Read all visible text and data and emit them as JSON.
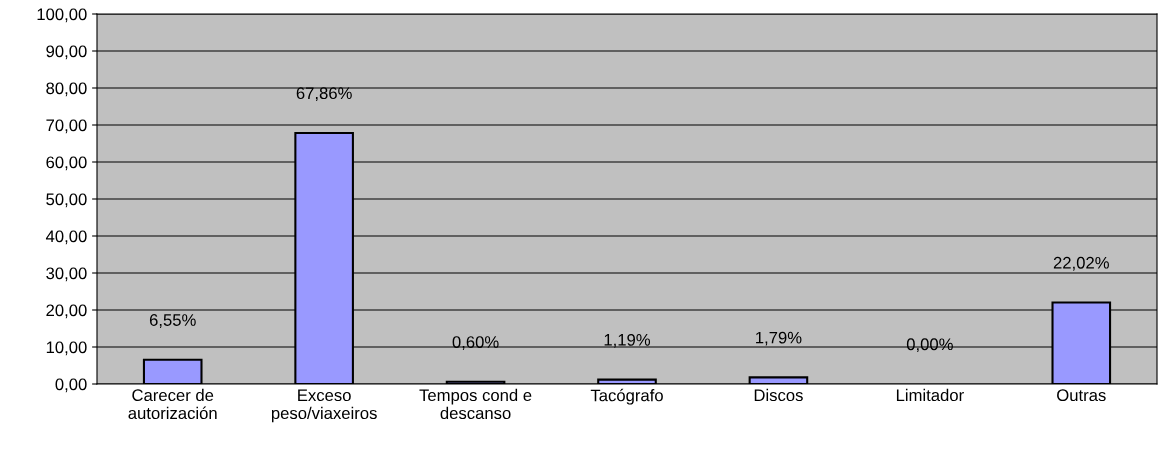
{
  "chart_data": {
    "type": "bar",
    "categories": [
      "Carecer de\nautorización",
      "Exceso\npeso/viaxeiros",
      "Tempos cond e\ndescanso",
      "Tacógrafo",
      "Discos",
      "Limitador",
      "Outras"
    ],
    "values": [
      6.55,
      67.86,
      0.6,
      1.19,
      1.79,
      0.0,
      22.02
    ],
    "value_labels": [
      "6,55%",
      "67,86%",
      "0,60%",
      "1,19%",
      "1,79%",
      "0,00%",
      "22,02%"
    ],
    "color": "#9999ff",
    "ylim": [
      0,
      100
    ],
    "yticks": [
      {
        "value": 0,
        "label": "0,00"
      },
      {
        "value": 10,
        "label": "10,00"
      },
      {
        "value": 20,
        "label": "20,00"
      },
      {
        "value": 30,
        "label": "30,00"
      },
      {
        "value": 40,
        "label": "40,00"
      },
      {
        "value": 50,
        "label": "50,00"
      },
      {
        "value": 60,
        "label": "60,00"
      },
      {
        "value": 70,
        "label": "70,00"
      },
      {
        "value": 80,
        "label": "80,00"
      },
      {
        "value": 90,
        "label": "90,00"
      },
      {
        "value": 100,
        "label": "100,00"
      }
    ],
    "grid": "y",
    "legend": false
  }
}
